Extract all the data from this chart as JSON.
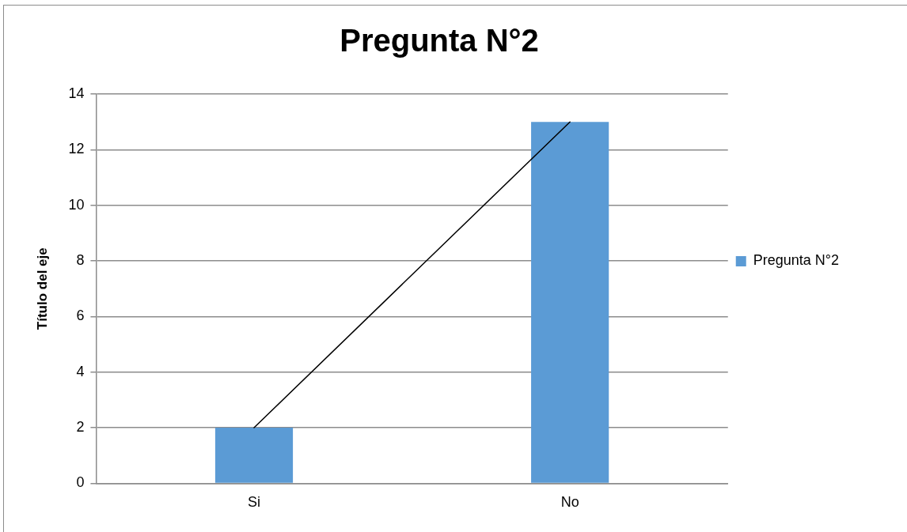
{
  "chart_data": {
    "type": "bar",
    "title": "Pregunta N°2",
    "ylabel": "Título del eje",
    "categories": [
      "Si",
      "No"
    ],
    "series": [
      {
        "name": "Pregunta N°2",
        "color": "#5b9bd5",
        "values": [
          2,
          13
        ]
      },
      {
        "type": "line",
        "color": "#000000",
        "values": [
          2,
          13
        ]
      }
    ],
    "ylim": [
      0,
      14
    ],
    "yticks": [
      0,
      2,
      4,
      6,
      8,
      10,
      12,
      14
    ],
    "grid": "y",
    "legend": "right",
    "marker": "none",
    "line_style": "solid"
  }
}
